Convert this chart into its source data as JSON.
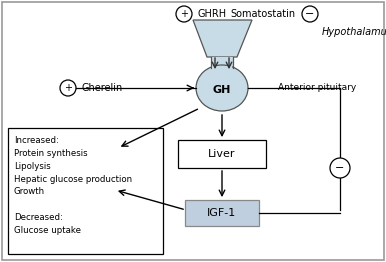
{
  "bg_color": "#ffffff",
  "fig_bg": "#ffffff",
  "hypothalamus_label": "Hypothalamus",
  "anterior_pituitary_label": "Anterior pituitary",
  "ghrh_label": "GHRH",
  "somatostatin_label": "Somatostatin",
  "gherelin_label": "Gherelin",
  "gh_label": "GH",
  "liver_label": "Liver",
  "igf1_label": "IGF-1",
  "plus_label": "+",
  "minus_label": "−",
  "increased_text": "Increased:\nProtein synthesis\nLipolysis\nHepatic glucose production\nGrowth\n\nDecreased:\nGlucose uptake",
  "igf1_fill": "#c0cfe0",
  "pituitary_fill": "#c8dce8",
  "border_color": "#aaaaaa"
}
